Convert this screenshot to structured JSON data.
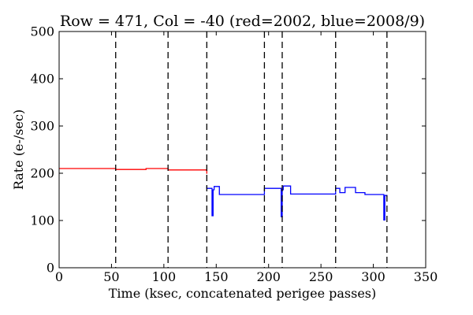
{
  "chart_data": {
    "type": "line",
    "title": "Row = 471, Col = -40 (red=2002, blue=2008/9)",
    "xlabel": "Time (ksec, concatenated perigee passes)",
    "ylabel": "Rate (e-/sec)",
    "xlim": [
      0,
      350
    ],
    "ylim": [
      0,
      500
    ],
    "xticks": [
      0,
      50,
      100,
      150,
      200,
      250,
      300,
      350
    ],
    "yticks": [
      0,
      100,
      200,
      300,
      400,
      500
    ],
    "grid": false,
    "vlines": [
      54,
      104,
      141,
      196,
      213,
      264,
      313
    ],
    "series": [
      {
        "color": "#ff0000",
        "x": [
          0,
          54,
          54,
          83,
          83,
          104,
          104,
          141,
          141
        ],
        "y": [
          210,
          210,
          208,
          208,
          210,
          210,
          207,
          207,
          199
        ]
      },
      {
        "color": "#0000ff",
        "x": [
          141,
          141,
          146,
          146,
          147,
          147,
          148,
          148,
          153,
          153,
          196,
          196,
          212,
          212,
          213,
          213,
          214,
          214,
          221,
          221,
          264,
          264,
          268,
          268,
          273,
          273,
          283,
          283,
          292,
          292,
          310,
          310,
          311,
          311,
          313,
          313
        ],
        "y": [
          172,
          168,
          168,
          110,
          110,
          165,
          165,
          172,
          172,
          155,
          155,
          168,
          168,
          108,
          108,
          165,
          165,
          173,
          173,
          156,
          156,
          168,
          168,
          159,
          159,
          170,
          170,
          159,
          159,
          155,
          155,
          101,
          101,
          153,
          153,
          150
        ]
      }
    ]
  }
}
